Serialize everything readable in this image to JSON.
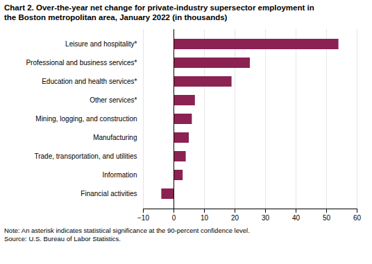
{
  "chart_data": {
    "type": "bar",
    "orientation": "horizontal",
    "title": "Chart 2. Over-the-year net change for private-industry supersector employment in",
    "subtitle": "the Boston metropolitan area, January 2022  (in thousands)",
    "categories": [
      "Financial activities",
      "Information",
      "Trade, transportation, and utilities",
      "Manufacturing",
      "Mining, logging, and construction",
      "Other services*",
      "Education and health services*",
      "Professional and business services*",
      "Leisure and hospitality*"
    ],
    "values": [
      -4,
      3,
      4,
      5,
      6,
      7,
      19,
      25,
      54
    ],
    "color": "#8B2252",
    "xlim": [
      -10,
      60
    ],
    "xticks": [
      -10,
      0,
      10,
      20,
      30,
      40,
      50,
      60
    ],
    "grid": true,
    "annotations": [
      "Note: An asterisk indicates statistical significance at the 90-percent confidence level.",
      "Source: U.S. Bureau of Labor Statistics."
    ]
  }
}
